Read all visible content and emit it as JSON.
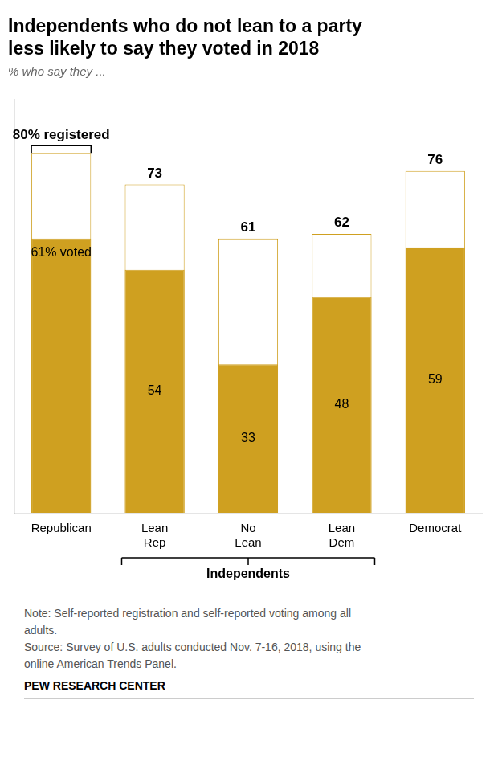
{
  "chart_data": {
    "type": "bar",
    "title": "Independents who do not lean to a party\nless likely to say they voted in 2018",
    "subtitle": "% who say they ...",
    "categories": [
      "Republican",
      "Lean\nRep",
      "No\nLean",
      "Lean\nDem",
      "Democrat"
    ],
    "series": [
      {
        "color": "#FFFFFF",
        "values": [
          80,
          73,
          61,
          62,
          76
        ],
        "value_labels": [
          "80% registered",
          "73",
          "61",
          "62",
          "76"
        ]
      },
      {
        "color": "#CFA020",
        "values": [
          61,
          54,
          33,
          48,
          59
        ],
        "value_labels": [
          "61% voted",
          "54",
          "33",
          "48",
          "59"
        ]
      }
    ],
    "group": {
      "label": "Independents",
      "categories": [
        "Lean\nRep",
        "No\nLean",
        "Lean\nDem"
      ]
    },
    "ylim": [
      0,
      92
    ],
    "grid": false,
    "tick_labels": "x",
    "data_labels": true,
    "note": [
      "Note: Self-reported registration and self-reported voting among all",
      "adults.",
      "Source: Survey of U.S. adults conducted Nov. 7-16, 2018, using the",
      "online American Trends Panel."
    ],
    "source": "PEW RESEARCH CENTER"
  }
}
